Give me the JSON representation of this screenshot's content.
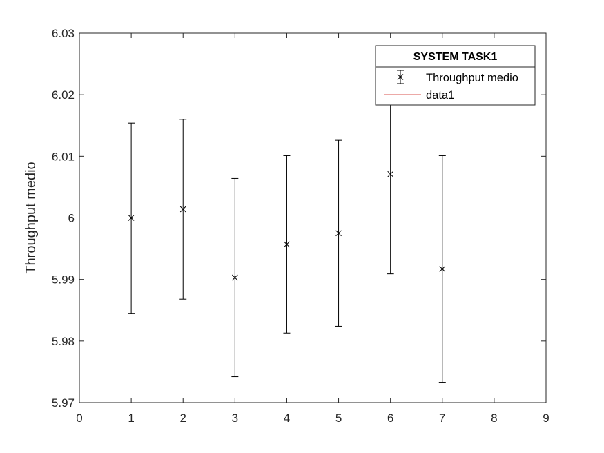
{
  "chart_data": {
    "type": "scatter",
    "title": "",
    "xlabel": "",
    "ylabel": "Throughput medio",
    "xlim": [
      0,
      9
    ],
    "ylim": [
      5.97,
      6.03
    ],
    "x_ticks": [
      "0",
      "1",
      "2",
      "3",
      "4",
      "5",
      "6",
      "7",
      "8",
      "9"
    ],
    "y_ticks": [
      "5.97",
      "5.98",
      "5.99",
      "6",
      "6.01",
      "6.02",
      "6.03"
    ],
    "grid": false,
    "legend_placement": "top-right",
    "legend_title": "SYSTEM TASK1",
    "series": [
      {
        "name": "Throughput medio",
        "marker": "x",
        "color": "#000000",
        "x": [
          1,
          2,
          3,
          4,
          5,
          6,
          7
        ],
        "y": [
          6.0,
          6.0014,
          5.9903,
          5.9957,
          5.9975,
          6.0071,
          5.9917
        ],
        "lower": [
          5.9845,
          5.9868,
          5.9742,
          5.9813,
          5.9824,
          5.9909,
          5.9733
        ],
        "upper": [
          6.0154,
          6.016,
          6.0064,
          6.0101,
          6.0126,
          6.0232,
          6.0101
        ]
      },
      {
        "name": "data1",
        "type": "line",
        "color": "#d9534f",
        "x": [
          0,
          9
        ],
        "y": [
          6.0,
          6.0
        ]
      }
    ]
  }
}
